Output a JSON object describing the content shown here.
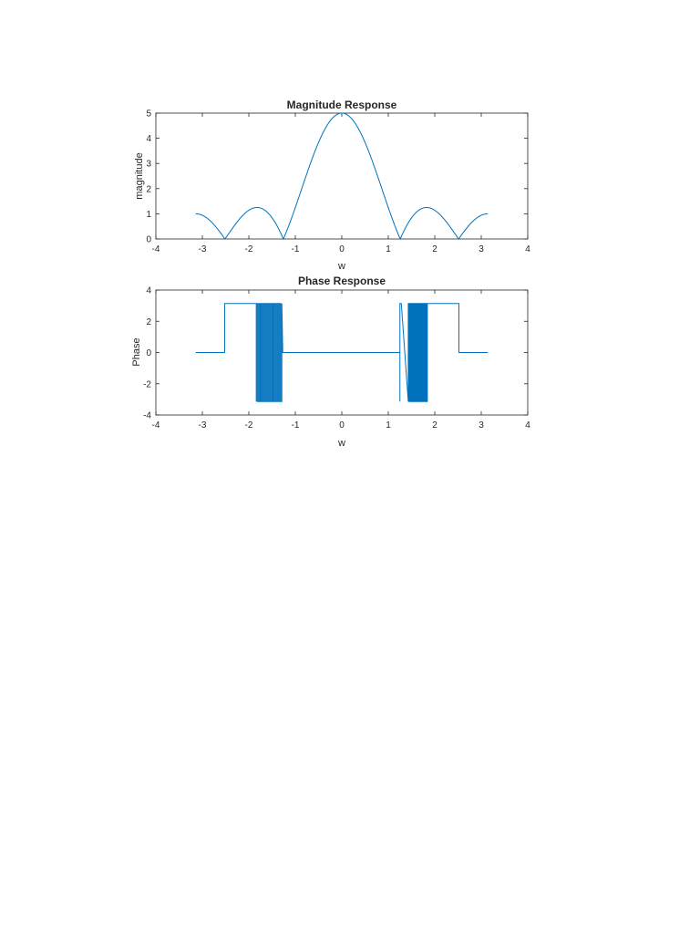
{
  "chart_data": [
    {
      "type": "line",
      "title": "Magnitude Response",
      "xlabel": "w",
      "ylabel": "magnitude",
      "xlim": [
        -4,
        4
      ],
      "ylim": [
        0,
        5
      ],
      "xticks": [
        "-4",
        "-3",
        "-2",
        "-1",
        "0",
        "1",
        "2",
        "3",
        "4"
      ],
      "yticks": [
        "0",
        "1",
        "2",
        "3",
        "4",
        "5"
      ],
      "grid": false,
      "color": "#0072BD",
      "series": [
        {
          "function": "abs(sin(2.5*w)/sin(w/2))",
          "x_range": [
            -3.1416,
            3.1416
          ],
          "values_sample": [
            {
              "x": -3.1416,
              "y": 1.0
            },
            {
              "x": -2.5133,
              "y": 0.0
            },
            {
              "x": -1.83,
              "y": 1.24
            },
            {
              "x": -1.2566,
              "y": 0.0
            },
            {
              "x": 0,
              "y": 5.0
            },
            {
              "x": 1.2566,
              "y": 0.0
            },
            {
              "x": 1.83,
              "y": 1.24
            },
            {
              "x": 2.5133,
              "y": 0.0
            },
            {
              "x": 3.1416,
              "y": 1.0
            }
          ]
        }
      ]
    },
    {
      "type": "line",
      "title": "Phase Response",
      "xlabel": "w",
      "ylabel": "Phase",
      "xlim": [
        -4,
        4
      ],
      "ylim": [
        -4,
        4
      ],
      "xticks": [
        "-4",
        "-3",
        "-2",
        "-1",
        "0",
        "1",
        "2",
        "3",
        "4"
      ],
      "yticks": [
        "-4",
        "-2",
        "0",
        "2",
        "4"
      ],
      "grid": false,
      "color": "#0072BD",
      "series": [
        {
          "segments": [
            {
              "x": [
                -3.1416,
                -2.52
              ],
              "y": 0
            },
            {
              "x": [
                -2.52,
                -1.84
              ],
              "y": 3.1416
            },
            {
              "x": [
                -1.84,
                -1.27
              ],
              "y": "oscillating between -3.1416 and 3.1416"
            },
            {
              "x": [
                -1.27,
                1.25
              ],
              "y": 0
            },
            {
              "x": [
                1.25,
                1.84
              ],
              "y": "oscillating between -3.1416 and 3.1416"
            },
            {
              "x": [
                1.84,
                2.52
              ],
              "y": 3.1416
            },
            {
              "x": [
                2.52,
                3.1416
              ],
              "y": 0
            }
          ]
        }
      ]
    }
  ]
}
